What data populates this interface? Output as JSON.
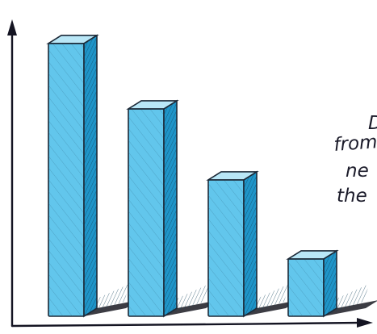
{
  "chart_data": {
    "type": "bar",
    "style": "hand-drawn 3d",
    "categories": [
      "",
      "",
      "",
      ""
    ],
    "values": [
      100,
      76,
      50,
      21
    ],
    "ylim": [
      0,
      110
    ],
    "title": "",
    "xlabel": "",
    "ylabel": "",
    "grid": false,
    "colors": {
      "bar_front": "#62c6ec",
      "bar_side": "#1f95c9",
      "bar_top": "#b9e7f7",
      "ink": "#141422"
    },
    "annotation_lines": [
      "D",
      "from",
      "ne",
      "the"
    ]
  }
}
